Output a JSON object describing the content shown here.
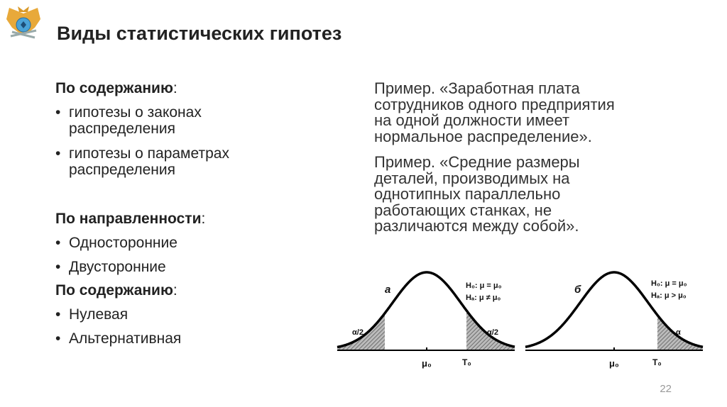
{
  "title": "Виды статистических гипотез",
  "left": {
    "sections": [
      {
        "heading": "По содержанию",
        "colon": ":",
        "items": [
          "гипотезы о законах\nраспределения",
          "гипотезы о параметрах\nраспределения"
        ]
      },
      {
        "heading": "По направленности",
        "colon": ":",
        "items": [
          "Односторонние",
          "Двусторонние"
        ]
      },
      {
        "heading": "По содержанию",
        "colon": ":",
        "items": [
          "Нулевая",
          "Альтернативная"
        ]
      }
    ]
  },
  "right": {
    "examples": [
      "Пример. «Заработная плата\nсотрудников одного предприятия\nна одной должности имеет\nнормальное распределение».",
      "Пример. «Средние размеры\nдеталей, производимых на\nоднотипных параллельно\nработающих станках, не\nразличаются между собой»."
    ]
  },
  "charts": [
    {
      "label": "а",
      "h0": "H₀: μ = μ₀",
      "ha": "Hₐ: μ ≠ μ₀",
      "tail_left": "α/2",
      "tail_right": "α/2",
      "center": "μ₀",
      "crit": "T₀",
      "tails": "two-sided"
    },
    {
      "label": "б",
      "h0": "H₀: μ = μ₀",
      "ha": "Hₐ: μ > μ₀",
      "tail_right": "α",
      "center": "μ₀",
      "crit": "T₀",
      "tails": "right"
    }
  ],
  "page_number": "22",
  "colors": {
    "text": "#222222",
    "page_number": "#999999",
    "hatch": "#555555"
  }
}
